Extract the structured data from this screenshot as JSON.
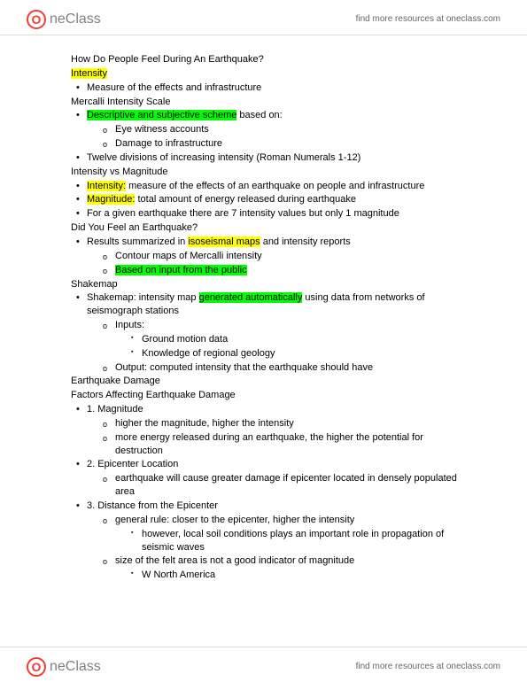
{
  "brand": {
    "icon_letter": "O",
    "name": "neClass"
  },
  "header_link": "find more resources at oneclass.com",
  "footer_link": "find more resources at oneclass.com",
  "hl": {
    "yellow": "#ffff00",
    "green": "#00ff00"
  },
  "lines": {
    "l1": "How Do People Feel During An Earthquake?",
    "l2a": "Intensity",
    "l3": "Measure of the effects and infrastructure",
    "l4": "Mercalli Intensity Scale",
    "l5a": "Descriptive and subjective scheme",
    "l5b": " based on:",
    "l6": "Eye witness accounts",
    "l7": "Damage to infrastructure",
    "l8": "Twelve divisions of increasing intensity (Roman Numerals 1-12)",
    "l9": "Intensity vs Magnitude",
    "l10a": "Intensity:",
    "l10b": " measure of the effects of an earthquake on people and infrastructure",
    "l11a": "Magnitude:",
    "l11b": " total amount of energy released during earthquake",
    "l12": "For a given earthquake there are 7 intensity values but only 1 magnitude",
    "l13": "Did You Feel an Earthquake?",
    "l14a": "Results summarized in ",
    "l14b": "isoseismal maps",
    "l14c": " and intensity reports",
    "l15": "Contour maps of Mercalli intensity",
    "l16": "Based on input from the public",
    "l17": "Shakemap",
    "l18a": "Shakemap: intensity map ",
    "l18b": "generated automatically",
    "l18c": " using data from networks of seismograph stations",
    "l19": "Inputs:",
    "l20": "Ground motion data",
    "l21": "Knowledge of regional geology",
    "l22": "Output: computed intensity that the earthquake should have",
    "l23": "Earthquake Damage",
    "l24": "Factors Affecting Earthquake Damage",
    "l25": "1. Magnitude",
    "l26": "higher the magnitude, higher the intensity",
    "l27": "more energy released during an earthquake, the higher the potential for destruction",
    "l28": "2. Epicenter Location",
    "l29": "earthquake will cause greater damage if epicenter located in densely populated area",
    "l30": "3. Distance from the Epicenter",
    "l31": "general rule: closer to the epicenter, higher the intensity",
    "l32": "however, local soil conditions plays an important role in propagation of seismic waves",
    "l33": "size of the felt area is not a good indicator of magnitude",
    "l34": "W North America"
  }
}
